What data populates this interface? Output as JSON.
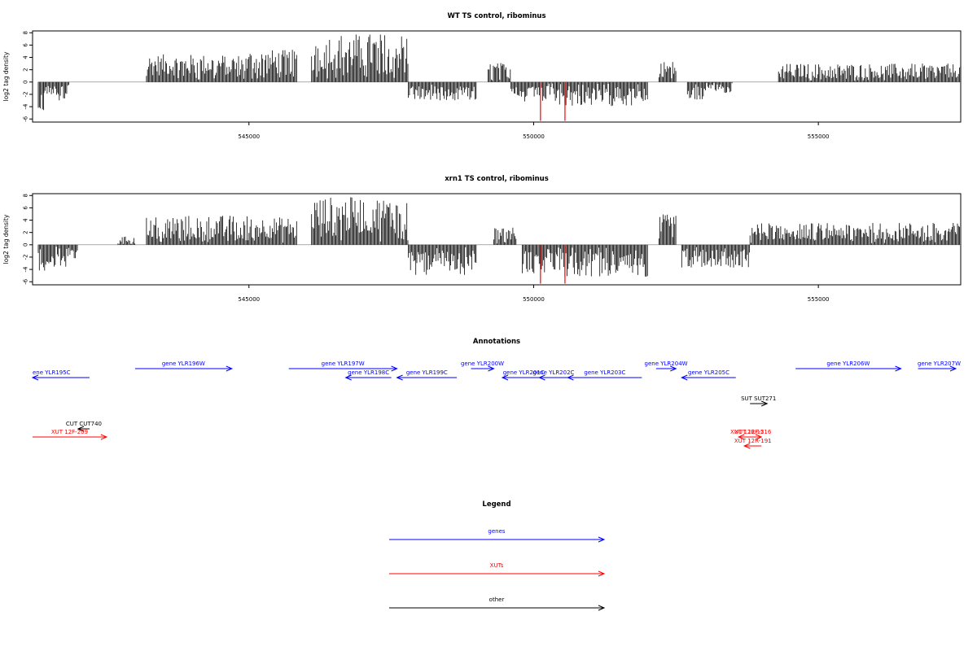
{
  "chart_data": [
    {
      "type": "bar",
      "title": "WT TS control, ribominus",
      "ylabel": "log2 tag density",
      "xlim": [
        541200,
        557500
      ],
      "ylim": [
        -6.5,
        8.3
      ],
      "xticks": [
        545000,
        550000,
        555000
      ],
      "yticks": [
        8,
        6,
        4,
        2,
        0,
        -2,
        -4,
        -6
      ],
      "grid": false,
      "regions": [
        {
          "start": 541300,
          "end": 541400,
          "value": -3.8
        },
        {
          "start": 541400,
          "end": 541650,
          "value": -1.4
        },
        {
          "start": 541650,
          "end": 541850,
          "value": -2.3
        },
        {
          "start": 543200,
          "end": 545000,
          "value": 3.0
        },
        {
          "start": 545000,
          "end": 545850,
          "value": 3.5
        },
        {
          "start": 546100,
          "end": 547800,
          "value": 5.3
        },
        {
          "start": 547800,
          "end": 549000,
          "value": -2.0
        },
        {
          "start": 549200,
          "end": 549600,
          "value": 2.1
        },
        {
          "start": 549600,
          "end": 550400,
          "value": -2.3
        },
        {
          "start": 550400,
          "end": 552000,
          "value": -2.6
        },
        {
          "start": 552200,
          "end": 552500,
          "value": 2.3
        },
        {
          "start": 552700,
          "end": 553000,
          "value": -2.0
        },
        {
          "start": 553000,
          "end": 553500,
          "value": -1.2
        },
        {
          "start": 554300,
          "end": 557500,
          "value": 2.0
        }
      ],
      "highlights": [
        {
          "x": 550120,
          "value": -6.3,
          "color": "#ff0000"
        },
        {
          "x": 550550,
          "value": -6.3,
          "color": "#ff0000"
        }
      ]
    },
    {
      "type": "bar",
      "title": "xrn1 TS control, ribominus",
      "ylabel": "log2 tag density",
      "xlim": [
        541200,
        557500
      ],
      "ylim": [
        -6.5,
        8.3
      ],
      "xticks": [
        545000,
        550000,
        555000
      ],
      "yticks": [
        8,
        6,
        4,
        2,
        0,
        -2,
        -4,
        -6
      ],
      "grid": false,
      "regions": [
        {
          "start": 541300,
          "end": 541800,
          "value": -2.8
        },
        {
          "start": 541800,
          "end": 542000,
          "value": -1.5
        },
        {
          "start": 542700,
          "end": 543000,
          "value": 0.9
        },
        {
          "start": 543200,
          "end": 545000,
          "value": 3.2
        },
        {
          "start": 545000,
          "end": 545850,
          "value": 3.0
        },
        {
          "start": 546100,
          "end": 547800,
          "value": 5.2
        },
        {
          "start": 547800,
          "end": 549000,
          "value": -3.3
        },
        {
          "start": 549300,
          "end": 549700,
          "value": 2.0
        },
        {
          "start": 549800,
          "end": 550400,
          "value": -3.2
        },
        {
          "start": 550400,
          "end": 552000,
          "value": -3.5
        },
        {
          "start": 552200,
          "end": 552500,
          "value": 3.3
        },
        {
          "start": 552600,
          "end": 553800,
          "value": -2.5
        },
        {
          "start": 553800,
          "end": 557500,
          "value": 2.4
        }
      ],
      "highlights": [
        {
          "x": 550120,
          "value": -6.3,
          "color": "#ff0000"
        },
        {
          "x": 550550,
          "value": -6.3,
          "color": "#ff0000"
        }
      ]
    }
  ],
  "annotations": {
    "title": "Annotations",
    "items": [
      {
        "label": "ene YLR195C",
        "start": 541200,
        "end": 542200,
        "strand": "-",
        "row": 1,
        "type": "gene"
      },
      {
        "label": "gene YLR196W",
        "start": 543000,
        "end": 544700,
        "strand": "+",
        "row": 0,
        "type": "gene"
      },
      {
        "label": "gene YLR197W",
        "start": 545700,
        "end": 547600,
        "strand": "+",
        "row": 0,
        "type": "gene"
      },
      {
        "label": "gene YLR198C",
        "start": 546700,
        "end": 547500,
        "strand": "-",
        "row": 1,
        "type": "gene"
      },
      {
        "label": "gene YLR199C",
        "start": 547600,
        "end": 548650,
        "strand": "-",
        "row": 1,
        "type": "gene"
      },
      {
        "label": "gene YLR200W",
        "start": 548900,
        "end": 549300,
        "strand": "+",
        "row": 0,
        "type": "gene"
      },
      {
        "label": "gene YLR201C",
        "start": 549450,
        "end": 550200,
        "strand": "-",
        "row": 1,
        "type": "gene"
      },
      {
        "label": "gene YLR202C",
        "start": 550100,
        "end": 550600,
        "strand": "-",
        "row": 1,
        "type": "gene"
      },
      {
        "label": "gene YLR203C",
        "start": 550600,
        "end": 551900,
        "strand": "-",
        "row": 1,
        "type": "gene"
      },
      {
        "label": "gene YLR204W",
        "start": 552150,
        "end": 552500,
        "strand": "+",
        "row": 0,
        "type": "gene"
      },
      {
        "label": "gene YLR205C",
        "start": 552600,
        "end": 553550,
        "strand": "-",
        "row": 1,
        "type": "gene"
      },
      {
        "label": "gene YLR206W",
        "start": 554600,
        "end": 556450,
        "strand": "+",
        "row": 0,
        "type": "gene"
      },
      {
        "label": "gene YLR207W",
        "start": 556750,
        "end": 557500,
        "strand": "+",
        "row": 0,
        "type": "gene"
      },
      {
        "label": "SUT SUT271",
        "start": 553800,
        "end": 554100,
        "strand": "+",
        "row": 3,
        "type": "other"
      },
      {
        "label": "CUT CUT740",
        "start": 542000,
        "end": 542200,
        "strand": "-",
        "row": 5,
        "type": "other"
      },
      {
        "label": "XUT 12F-209",
        "start": 541200,
        "end": 542500,
        "strand": "+",
        "row": 6,
        "type": "XUT"
      },
      {
        "label": "XUT 12R-15",
        "start": 553600,
        "end": 553900,
        "strand": "-",
        "row": 6,
        "type": "XUT"
      },
      {
        "label": "XUT 12F-216",
        "start": 553700,
        "end": 554000,
        "strand": "+",
        "row": 6,
        "type": "XUT"
      },
      {
        "label": "XUT 12R-191",
        "start": 553700,
        "end": 554000,
        "strand": "-",
        "row": 7,
        "type": "XUT"
      }
    ]
  },
  "legend": {
    "title": "Legend",
    "items": [
      {
        "label": "genes",
        "color": "#0000ff"
      },
      {
        "label": "XUTs",
        "color": "#ff0000"
      },
      {
        "label": "other",
        "color": "#000000"
      }
    ]
  },
  "colors": {
    "gene": "#0000ff",
    "XUT": "#ff0000",
    "other": "#000000",
    "bars": "#000000",
    "axis": "#000000"
  }
}
